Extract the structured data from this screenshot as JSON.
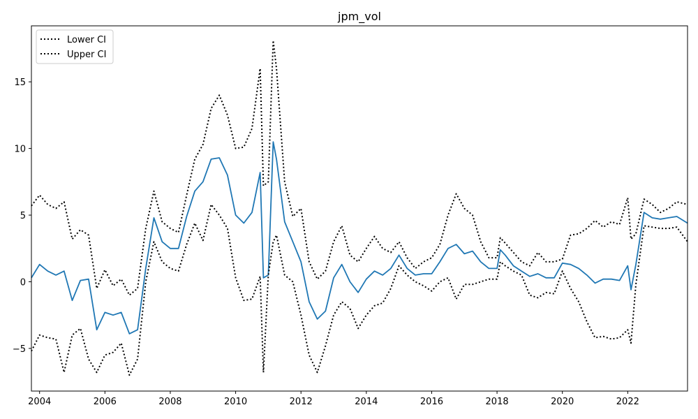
{
  "chart_data": {
    "type": "line",
    "title": "jpm_vol",
    "xlim": [
      2003.75,
      2023.83
    ],
    "ylim": [
      -8.2,
      19.2
    ],
    "xticks": [
      2004,
      2006,
      2008,
      2010,
      2012,
      2014,
      2016,
      2018,
      2020,
      2022
    ],
    "xtick_labels": [
      "2004",
      "2006",
      "2008",
      "2010",
      "2012",
      "2014",
      "2016",
      "2018",
      "2020",
      "2022"
    ],
    "yticks": [
      -5,
      0,
      5,
      10,
      15
    ],
    "ytick_labels": [
      "−5",
      "0",
      "5",
      "10",
      "15"
    ],
    "grid": false,
    "legend_position": "top-left",
    "legend": [
      "Lower CI",
      "Upper CI"
    ],
    "colors": {
      "main": "#1f77b4",
      "ci": "#000000"
    },
    "series": [
      {
        "style": "solid",
        "color": "#1f77b4",
        "x": [
          2003.75,
          2004.0,
          2004.25,
          2004.5,
          2004.75,
          2005.0,
          2005.25,
          2005.5,
          2005.75,
          2006.0,
          2006.25,
          2006.5,
          2006.75,
          2007.0,
          2007.25,
          2007.5,
          2007.75,
          2008.0,
          2008.25,
          2008.5,
          2008.75,
          2009.0,
          2009.25,
          2009.5,
          2009.75,
          2010.0,
          2010.25,
          2010.5,
          2010.75,
          2010.85,
          2011.0,
          2011.15,
          2011.25,
          2011.5,
          2011.75,
          2012.0,
          2012.25,
          2012.5,
          2012.75,
          2013.0,
          2013.25,
          2013.5,
          2013.75,
          2014.0,
          2014.25,
          2014.5,
          2014.75,
          2015.0,
          2015.25,
          2015.5,
          2015.75,
          2016.0,
          2016.25,
          2016.5,
          2016.75,
          2017.0,
          2017.25,
          2017.5,
          2017.75,
          2018.0,
          2018.1,
          2018.25,
          2018.5,
          2018.75,
          2019.0,
          2019.25,
          2019.5,
          2019.75,
          2020.0,
          2020.25,
          2020.5,
          2020.75,
          2021.0,
          2021.25,
          2021.5,
          2021.75,
          2022.0,
          2022.1,
          2022.25,
          2022.5,
          2022.75,
          2023.0,
          2023.25,
          2023.5,
          2023.83
        ],
        "values": [
          0.3,
          1.3,
          0.8,
          0.5,
          0.8,
          -1.4,
          0.1,
          0.2,
          -3.6,
          -2.3,
          -2.5,
          -2.3,
          -3.9,
          -3.6,
          1.0,
          4.8,
          3.0,
          2.5,
          2.5,
          4.9,
          6.8,
          7.5,
          9.2,
          9.3,
          8.0,
          5.0,
          4.4,
          5.2,
          8.2,
          0.3,
          0.5,
          10.5,
          9.2,
          4.5,
          3.0,
          1.5,
          -1.5,
          -2.8,
          -2.2,
          0.3,
          1.3,
          0.0,
          -0.8,
          0.2,
          0.8,
          0.5,
          1.0,
          2.0,
          1.0,
          0.5,
          0.6,
          0.6,
          1.5,
          2.5,
          2.8,
          2.1,
          2.3,
          1.5,
          1.0,
          1.0,
          2.4,
          2.0,
          1.2,
          0.8,
          0.4,
          0.6,
          0.3,
          0.3,
          1.4,
          1.3,
          1.0,
          0.5,
          -0.1,
          0.2,
          0.2,
          0.1,
          1.2,
          -0.6,
          1.3,
          5.2,
          4.8,
          4.7,
          4.8,
          4.9,
          4.4
        ]
      },
      {
        "name": "Lower CI",
        "style": "dotted",
        "color": "#000000",
        "x": [
          2003.75,
          2004.0,
          2004.25,
          2004.5,
          2004.75,
          2005.0,
          2005.25,
          2005.5,
          2005.75,
          2006.0,
          2006.25,
          2006.5,
          2006.75,
          2007.0,
          2007.25,
          2007.5,
          2007.75,
          2008.0,
          2008.25,
          2008.5,
          2008.75,
          2009.0,
          2009.25,
          2009.5,
          2009.75,
          2010.0,
          2010.25,
          2010.5,
          2010.75,
          2010.85,
          2011.0,
          2011.15,
          2011.25,
          2011.5,
          2011.75,
          2012.0,
          2012.25,
          2012.5,
          2012.75,
          2013.0,
          2013.25,
          2013.5,
          2013.75,
          2014.0,
          2014.25,
          2014.5,
          2014.75,
          2015.0,
          2015.25,
          2015.5,
          2015.75,
          2016.0,
          2016.25,
          2016.5,
          2016.75,
          2017.0,
          2017.25,
          2017.5,
          2017.75,
          2018.0,
          2018.1,
          2018.25,
          2018.5,
          2018.75,
          2019.0,
          2019.25,
          2019.5,
          2019.75,
          2020.0,
          2020.25,
          2020.5,
          2020.75,
          2021.0,
          2021.25,
          2021.5,
          2021.75,
          2022.0,
          2022.1,
          2022.25,
          2022.5,
          2022.75,
          2023.0,
          2023.25,
          2023.5,
          2023.83
        ],
        "values": [
          -5.2,
          -4.0,
          -4.2,
          -4.3,
          -6.8,
          -4.0,
          -3.5,
          -5.8,
          -6.8,
          -5.5,
          -5.3,
          -4.6,
          -7.0,
          -5.8,
          0.0,
          3.0,
          1.5,
          1.0,
          0.8,
          2.8,
          4.4,
          3.1,
          5.8,
          5.0,
          4.0,
          0.3,
          -1.4,
          -1.3,
          0.4,
          -6.8,
          0.5,
          3.0,
          3.5,
          0.5,
          0.0,
          -2.5,
          -5.5,
          -6.8,
          -4.8,
          -2.5,
          -1.5,
          -2.0,
          -3.5,
          -2.5,
          -1.8,
          -1.6,
          -0.5,
          1.2,
          0.5,
          0.0,
          -0.3,
          -0.7,
          0.0,
          0.3,
          -1.3,
          -0.2,
          -0.2,
          0.0,
          0.2,
          0.2,
          1.5,
          1.2,
          0.8,
          0.5,
          -1.0,
          -1.2,
          -0.8,
          -0.9,
          0.8,
          -0.5,
          -1.5,
          -3.0,
          -4.2,
          -4.1,
          -4.3,
          -4.2,
          -3.6,
          -4.6,
          -0.2,
          4.2,
          4.1,
          4.0,
          4.0,
          4.1,
          3.0
        ]
      },
      {
        "name": "Upper CI",
        "style": "dotted",
        "color": "#000000",
        "x": [
          2003.75,
          2004.0,
          2004.25,
          2004.5,
          2004.75,
          2005.0,
          2005.25,
          2005.5,
          2005.75,
          2006.0,
          2006.25,
          2006.5,
          2006.75,
          2007.0,
          2007.25,
          2007.5,
          2007.75,
          2008.0,
          2008.25,
          2008.5,
          2008.75,
          2009.0,
          2009.25,
          2009.5,
          2009.75,
          2010.0,
          2010.25,
          2010.5,
          2010.75,
          2010.85,
          2011.0,
          2011.15,
          2011.25,
          2011.5,
          2011.75,
          2012.0,
          2012.25,
          2012.5,
          2012.75,
          2013.0,
          2013.25,
          2013.5,
          2013.75,
          2014.0,
          2014.25,
          2014.5,
          2014.75,
          2015.0,
          2015.25,
          2015.5,
          2015.75,
          2016.0,
          2016.25,
          2016.5,
          2016.75,
          2017.0,
          2017.25,
          2017.5,
          2017.75,
          2018.0,
          2018.1,
          2018.25,
          2018.5,
          2018.75,
          2019.0,
          2019.25,
          2019.5,
          2019.75,
          2020.0,
          2020.25,
          2020.5,
          2020.75,
          2021.0,
          2021.25,
          2021.5,
          2021.75,
          2022.0,
          2022.1,
          2022.25,
          2022.5,
          2022.75,
          2023.0,
          2023.25,
          2023.5,
          2023.83
        ],
        "values": [
          5.7,
          6.5,
          5.8,
          5.5,
          6.0,
          3.2,
          3.9,
          3.5,
          -0.5,
          0.9,
          -0.3,
          0.2,
          -1.0,
          -0.5,
          4.0,
          6.8,
          4.5,
          4.0,
          3.7,
          6.5,
          9.2,
          10.3,
          13.0,
          14.0,
          12.5,
          10.0,
          10.1,
          11.5,
          16.0,
          7.2,
          7.5,
          18.1,
          16.0,
          7.5,
          4.9,
          5.5,
          1.5,
          0.2,
          0.8,
          3.0,
          4.2,
          2.0,
          1.5,
          2.5,
          3.4,
          2.5,
          2.2,
          3.0,
          1.8,
          1.0,
          1.5,
          1.8,
          2.8,
          5.0,
          6.6,
          5.5,
          5.0,
          3.0,
          1.8,
          1.8,
          3.3,
          2.9,
          2.2,
          1.5,
          1.2,
          2.2,
          1.5,
          1.5,
          1.7,
          3.5,
          3.6,
          4.0,
          4.6,
          4.1,
          4.5,
          4.3,
          6.3,
          3.2,
          3.6,
          6.2,
          5.8,
          5.2,
          5.5,
          6.0,
          5.8
        ]
      }
    ]
  }
}
